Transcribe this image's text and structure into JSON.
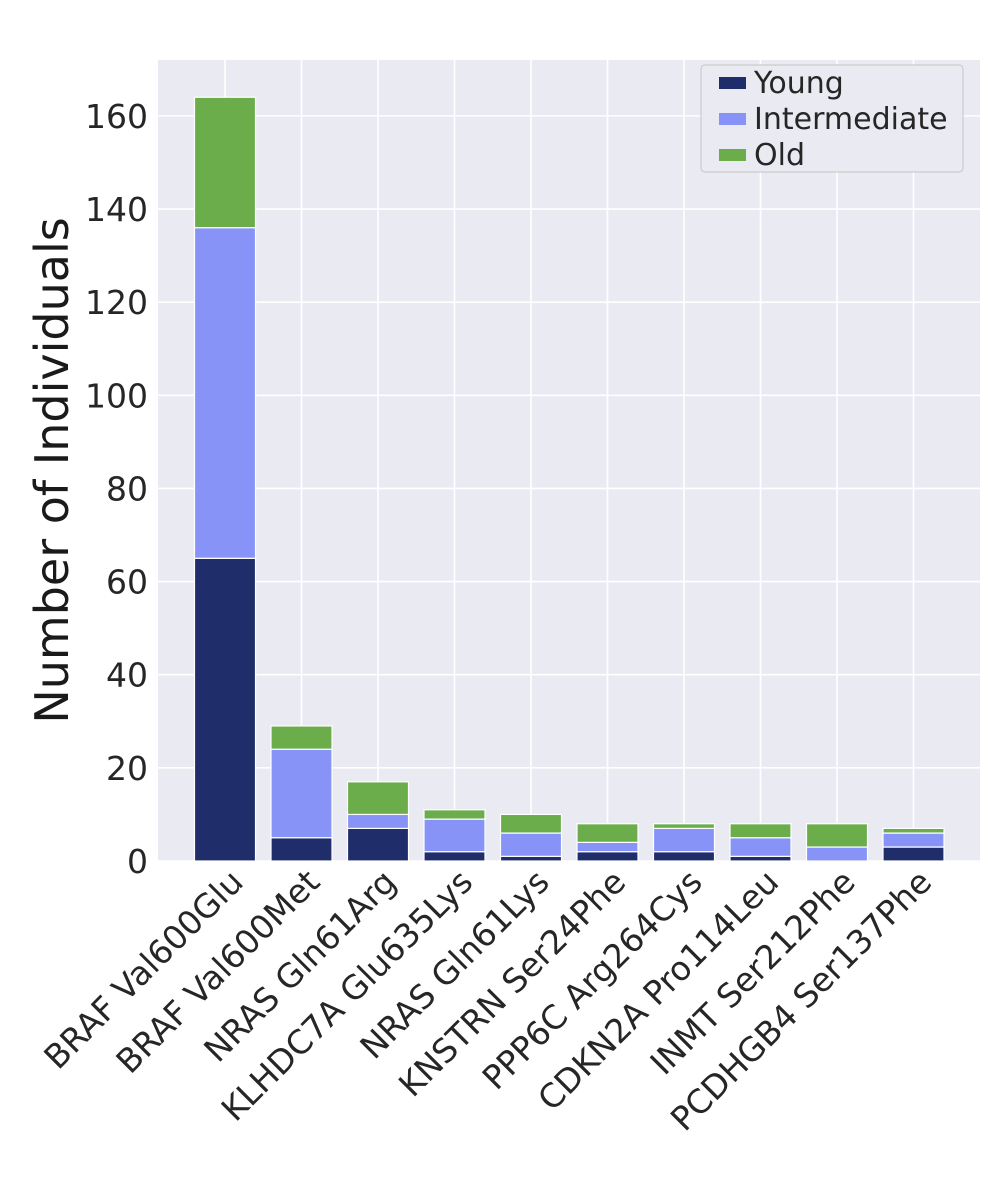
{
  "chart_data": {
    "type": "bar",
    "stacked": true,
    "title": "",
    "xlabel": "",
    "ylabel": "Number of Individuals",
    "ylim": [
      0,
      172
    ],
    "yticks": [
      0,
      20,
      40,
      60,
      80,
      100,
      120,
      140,
      160
    ],
    "grid": true,
    "legend_position": "top-right",
    "categories": [
      "BRAF Val600Glu",
      "BRAF Val600Met",
      "NRAS Gln61Arg",
      "KLHDC7A Glu635Lys",
      "NRAS Gln61Lys",
      "KNSTRN Ser24Phe",
      "PPP6C Arg264Cys",
      "CDKN2A Pro114Leu",
      "INMT Ser212Phe",
      "PCDHGB4 Ser137Phe"
    ],
    "series": [
      {
        "name": "Young",
        "color": "#1f2e6b",
        "values": [
          65,
          5,
          7,
          2,
          1,
          2,
          2,
          1,
          0,
          3
        ]
      },
      {
        "name": "Intermediate",
        "color": "#8793f7",
        "values": [
          71,
          19,
          3,
          7,
          5,
          2,
          5,
          4,
          3,
          3
        ]
      },
      {
        "name": "Old",
        "color": "#6aad4a",
        "values": [
          28,
          5,
          7,
          2,
          4,
          4,
          1,
          3,
          5,
          1
        ]
      }
    ]
  }
}
